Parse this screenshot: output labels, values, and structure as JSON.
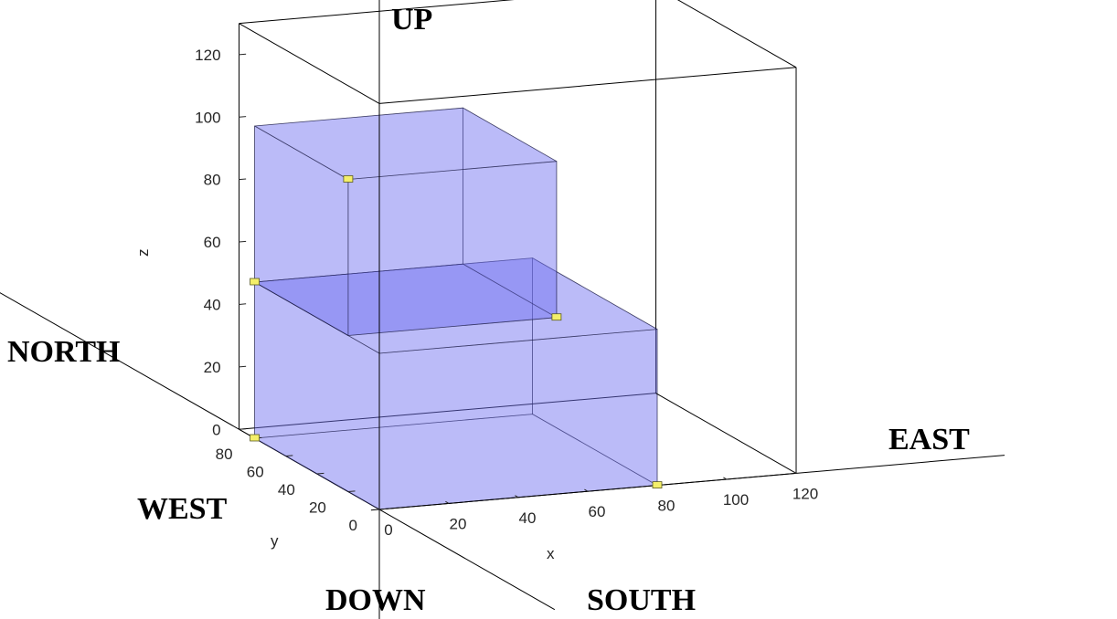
{
  "chart_data": {
    "type": "3d-box",
    "title": "",
    "xlabel": "x",
    "ylabel": "y",
    "zlabel": "z",
    "xlim": [
      0,
      120
    ],
    "ylim": [
      0,
      90
    ],
    "zlim": [
      0,
      130
    ],
    "xticks": [
      "0",
      "20",
      "40",
      "60",
      "80",
      "100",
      "120"
    ],
    "yticks": [
      "0",
      "20",
      "40",
      "60",
      "80"
    ],
    "zticks": [
      "0",
      "20",
      "40",
      "60",
      "80",
      "100",
      "120"
    ],
    "grid": false,
    "box_color": "#6f6ff2",
    "marker_color": "#f4ef6a",
    "boxes": [
      {
        "x": [
          0,
          80
        ],
        "y": [
          0,
          80
        ],
        "z": [
          0,
          50
        ]
      },
      {
        "x": [
          0,
          60
        ],
        "y": [
          20,
          80
        ],
        "z": [
          50,
          100
        ]
      }
    ],
    "markers": [
      {
        "x": 0,
        "y": 80,
        "z": 0
      },
      {
        "x": 80,
        "y": 0,
        "z": 0
      },
      {
        "x": 0,
        "y": 80,
        "z": 50
      },
      {
        "x": 60,
        "y": 20,
        "z": 50
      },
      {
        "x": 0,
        "y": 20,
        "z": 100
      }
    ]
  },
  "directions": {
    "up": "UP",
    "down": "DOWN",
    "north": "NORTH",
    "south": "SOUTH",
    "east": "EAST",
    "west": "WEST"
  }
}
